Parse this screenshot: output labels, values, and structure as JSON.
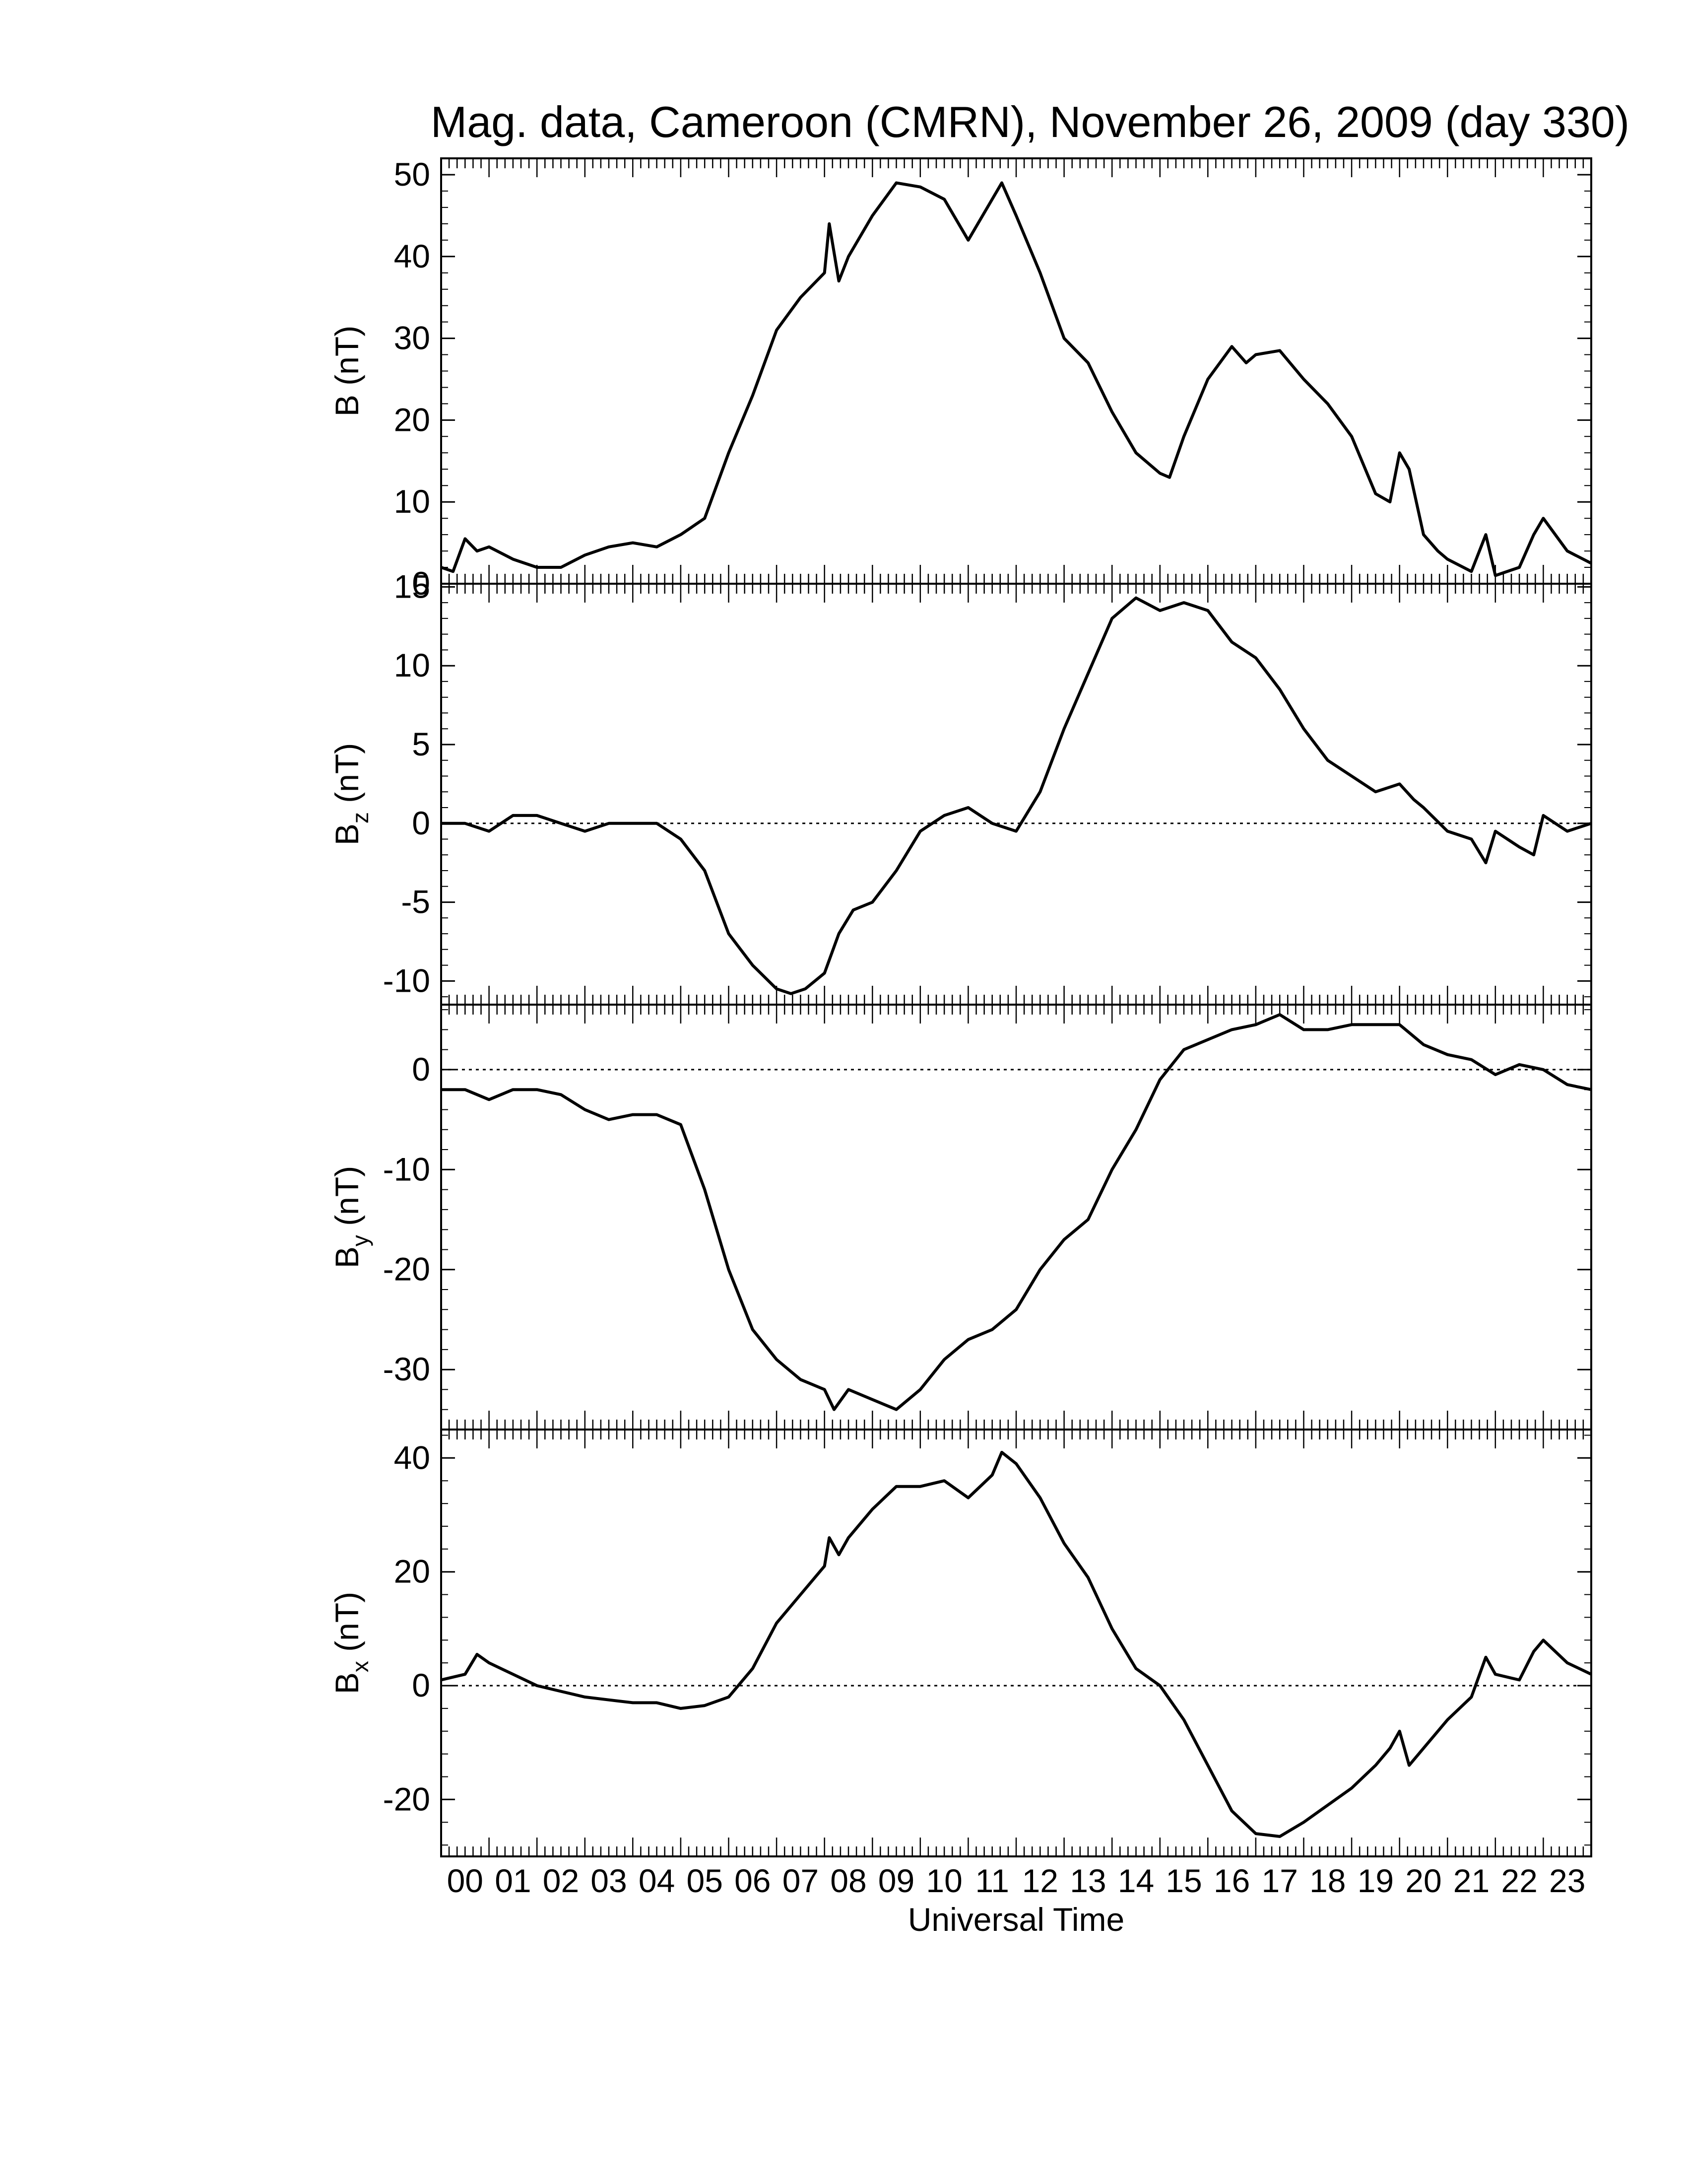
{
  "title": "Mag. data, Cameroon (CMRN), November 26, 2009 (day 330)",
  "xlabel": "Universal Time",
  "colors": {
    "line": "#000000",
    "background": "#ffffff"
  },
  "chart_data": [
    {
      "type": "line",
      "name": "B",
      "ylabel": "B (nT)",
      "ylabel_parts": [
        "B",
        "",
        " (nT)"
      ],
      "ylim": [
        0,
        52
      ],
      "yticks": [
        0,
        10,
        20,
        30,
        40,
        50
      ],
      "zero_line": false,
      "x": [
        0,
        0.25,
        0.5,
        0.75,
        1.0,
        1.5,
        2.0,
        2.5,
        3.0,
        3.5,
        4.0,
        4.5,
        5.0,
        5.5,
        6.0,
        6.5,
        7.0,
        7.5,
        8.0,
        8.1,
        8.3,
        8.5,
        9.0,
        9.5,
        10.0,
        10.5,
        11.0,
        11.5,
        11.7,
        12.0,
        12.5,
        13.0,
        13.5,
        14.0,
        14.5,
        15.0,
        15.2,
        15.5,
        16.0,
        16.5,
        16.8,
        17.0,
        17.5,
        18.0,
        18.5,
        19.0,
        19.5,
        19.8,
        20.0,
        20.2,
        20.5,
        20.8,
        21.0,
        21.5,
        21.8,
        22.0,
        22.5,
        22.8,
        23.0,
        23.5,
        24.0
      ],
      "values": [
        2,
        1.5,
        5.5,
        4,
        4.5,
        3,
        2,
        2,
        3.5,
        4.5,
        5,
        4.5,
        6,
        8,
        16,
        23,
        31,
        35,
        38,
        44,
        37,
        40,
        45,
        49,
        48.5,
        47,
        42,
        47,
        49,
        45,
        38,
        30,
        27,
        21,
        16,
        13.5,
        13,
        18,
        25,
        29,
        27,
        28,
        28.5,
        25,
        22,
        18,
        11,
        10,
        16,
        14,
        6,
        4,
        3,
        1.5,
        6,
        1,
        2,
        6,
        8,
        4,
        2.5
      ]
    },
    {
      "type": "line",
      "name": "Bz",
      "ylabel": "Bz (nT)",
      "ylabel_parts": [
        "B",
        "z",
        " (nT)"
      ],
      "ylim": [
        -11.5,
        15.2
      ],
      "yticks": [
        -10,
        -5,
        0,
        5,
        10,
        15
      ],
      "zero_line": true,
      "x": [
        0,
        0.5,
        1.0,
        1.5,
        2.0,
        2.5,
        3.0,
        3.5,
        4.0,
        4.5,
        5.0,
        5.5,
        6.0,
        6.5,
        7.0,
        7.3,
        7.6,
        8.0,
        8.3,
        8.6,
        9.0,
        9.5,
        10.0,
        10.5,
        11.0,
        11.5,
        12.0,
        12.5,
        13.0,
        13.5,
        14.0,
        14.5,
        15.0,
        15.5,
        16.0,
        16.5,
        17.0,
        17.5,
        18.0,
        18.5,
        19.0,
        19.5,
        20.0,
        20.3,
        20.5,
        21.0,
        21.5,
        21.8,
        22.0,
        22.5,
        22.8,
        23.0,
        23.5,
        24.0
      ],
      "values": [
        0,
        0,
        -0.5,
        0.5,
        0.5,
        0,
        -0.5,
        0,
        0,
        0,
        -1,
        -3,
        -7,
        -9,
        -10.5,
        -10.8,
        -10.5,
        -9.5,
        -7,
        -5.5,
        -5,
        -3,
        -0.5,
        0.5,
        1,
        0,
        -0.5,
        2,
        6,
        9.5,
        13,
        14.3,
        13.5,
        14,
        13.5,
        11.5,
        10.5,
        8.5,
        6,
        4,
        3,
        2,
        2.5,
        1.5,
        1,
        -0.5,
        -1,
        -2.5,
        -0.5,
        -1.5,
        -2,
        0.5,
        -0.5,
        0
      ]
    },
    {
      "type": "line",
      "name": "By",
      "ylabel": "By (nT)",
      "ylabel_parts": [
        "B",
        "y",
        " (nT)"
      ],
      "ylim": [
        -36,
        6.5
      ],
      "yticks": [
        -30,
        -20,
        -10,
        0
      ],
      "zero_line": true,
      "x": [
        0,
        0.5,
        1.0,
        1.5,
        2.0,
        2.5,
        3.0,
        3.5,
        4.0,
        4.5,
        5.0,
        5.5,
        6.0,
        6.5,
        7.0,
        7.5,
        8.0,
        8.2,
        8.5,
        9.0,
        9.5,
        10.0,
        10.5,
        11.0,
        11.5,
        12.0,
        12.5,
        13.0,
        13.5,
        14.0,
        14.5,
        15.0,
        15.5,
        16.0,
        16.5,
        17.0,
        17.5,
        18.0,
        18.5,
        19.0,
        19.5,
        20.0,
        20.5,
        21.0,
        21.5,
        22.0,
        22.5,
        23.0,
        23.5,
        24.0
      ],
      "values": [
        -2,
        -2,
        -3,
        -2,
        -2,
        -2.5,
        -4,
        -5,
        -4.5,
        -4.5,
        -5.5,
        -12,
        -20,
        -26,
        -29,
        -31,
        -32,
        -34,
        -32,
        -33,
        -34,
        -32,
        -29,
        -27,
        -26,
        -24,
        -20,
        -17,
        -15,
        -10,
        -6,
        -1,
        2,
        3,
        4,
        4.5,
        5.5,
        4,
        4,
        4.5,
        4.5,
        4.5,
        2.5,
        1.5,
        1,
        -0.5,
        0.5,
        0,
        -1.5,
        -2
      ]
    },
    {
      "type": "line",
      "name": "Bx",
      "ylabel": "Bx (nT)",
      "ylabel_parts": [
        "B",
        "x",
        " (nT)"
      ],
      "ylim": [
        -30,
        45
      ],
      "yticks": [
        -20,
        0,
        20,
        40
      ],
      "zero_line": true,
      "x": [
        0,
        0.5,
        0.75,
        1.0,
        1.5,
        2.0,
        2.5,
        3.0,
        3.5,
        4.0,
        4.5,
        5.0,
        5.5,
        6.0,
        6.5,
        7.0,
        7.5,
        8.0,
        8.1,
        8.3,
        8.5,
        9.0,
        9.5,
        10.0,
        10.5,
        11.0,
        11.5,
        11.7,
        12.0,
        12.5,
        13.0,
        13.5,
        14.0,
        14.5,
        15.0,
        15.5,
        16.0,
        16.5,
        17.0,
        17.5,
        18.0,
        18.5,
        19.0,
        19.5,
        19.8,
        20.0,
        20.2,
        20.5,
        21.0,
        21.5,
        21.8,
        22.0,
        22.5,
        22.8,
        23.0,
        23.5,
        24.0
      ],
      "values": [
        1,
        2,
        5.5,
        4,
        2,
        0,
        -1,
        -2,
        -2.5,
        -3,
        -3,
        -4,
        -3.5,
        -2,
        3,
        11,
        16,
        21,
        26,
        23,
        26,
        31,
        35,
        35,
        36,
        33,
        37,
        41,
        39,
        33,
        25,
        19,
        10,
        3,
        0,
        -6,
        -14,
        -22,
        -26,
        -26.5,
        -24,
        -21,
        -18,
        -14,
        -11,
        -8,
        -14,
        -11,
        -6,
        -2,
        5,
        2,
        1,
        6,
        8,
        4,
        2
      ]
    }
  ],
  "x_axis": {
    "xlim": [
      0,
      24
    ],
    "ticks": [
      0.5,
      1.5,
      2.5,
      3.5,
      4.5,
      5.5,
      6.5,
      7.5,
      8.5,
      9.5,
      10.5,
      11.5,
      12.5,
      13.5,
      14.5,
      15.5,
      16.5,
      17.5,
      18.5,
      19.5,
      20.5,
      21.5,
      22.5,
      23.5
    ],
    "labels": [
      "00",
      "01",
      "02",
      "03",
      "04",
      "05",
      "06",
      "07",
      "08",
      "09",
      "10",
      "11",
      "12",
      "13",
      "14",
      "15",
      "16",
      "17",
      "18",
      "19",
      "20",
      "21",
      "22",
      "23"
    ]
  }
}
